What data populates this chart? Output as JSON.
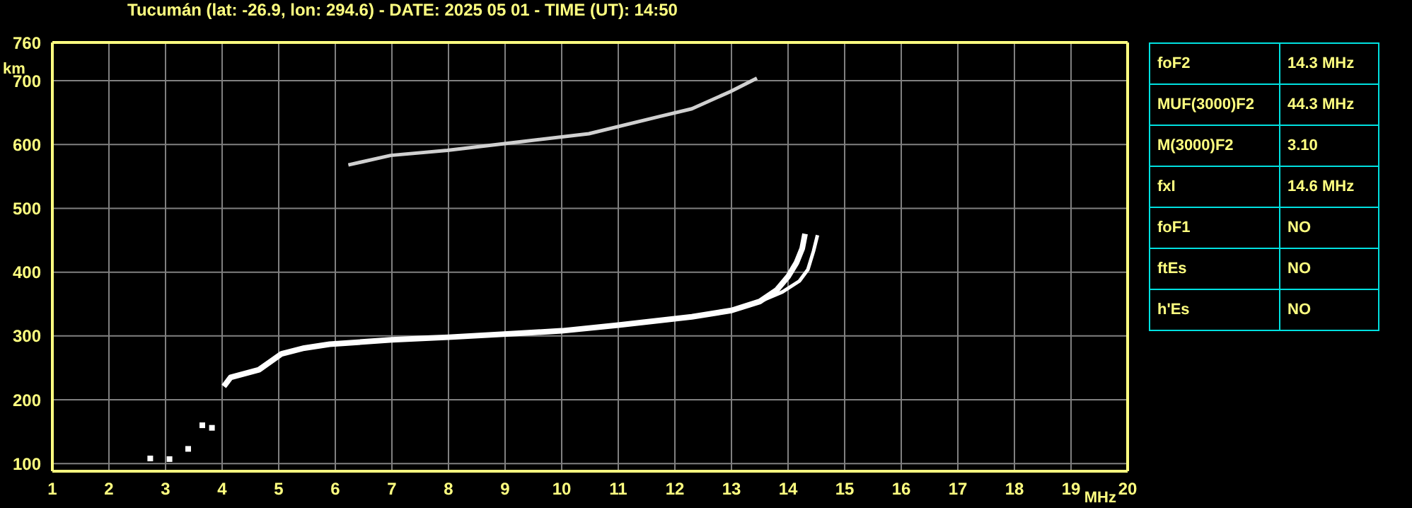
{
  "chart_data": {
    "type": "line",
    "title": "Tucumán (lat: -26.9, lon: 294.6) - DATE: 2025 05 01 - TIME (UT): 14:50",
    "xlabel": "MHz",
    "ylabel": "km",
    "xlim": [
      1,
      20
    ],
    "xticks": [
      1,
      2,
      3,
      4,
      5,
      6,
      7,
      8,
      9,
      10,
      11,
      12,
      13,
      14,
      15,
      16,
      17,
      18,
      19,
      20
    ],
    "ylim": [
      88,
      760
    ],
    "yticks": [
      100,
      200,
      300,
      400,
      500,
      600,
      700,
      760
    ],
    "grid": true,
    "marker": "none",
    "line_style": "solid",
    "series": [
      {
        "color": "#ffffff",
        "x": [
          4.03,
          4.15,
          4.65,
          5.05,
          5.45,
          5.9,
          7,
          8,
          9.2,
          10,
          11,
          12.3,
          13,
          13.5,
          13.8,
          14,
          14.15,
          14.25,
          14.3
        ],
        "values": [
          221,
          235,
          247,
          272,
          281,
          287,
          294,
          298,
          304,
          308,
          317,
          330,
          340,
          354,
          372,
          393,
          415,
          437,
          460
        ]
      },
      {
        "color": "#ffffff",
        "x": [
          13.5,
          13.9,
          14.2,
          14.35,
          14.45,
          14.52
        ],
        "values": [
          354,
          369,
          386,
          404,
          433,
          458
        ]
      },
      {
        "color": "#d0d0d0",
        "x": [
          6.23,
          6.98,
          7.98,
          9.23,
          10.48,
          11.73,
          12.3,
          12.98,
          13.45
        ],
        "values": [
          568,
          583,
          591,
          604,
          617,
          644,
          656,
          683,
          704
        ]
      },
      {
        "type": "scatter",
        "marker": "square",
        "color": "#ffffff",
        "x": [
          2.73,
          3.07,
          3.4,
          3.65,
          3.82
        ],
        "values": [
          108,
          107,
          123,
          160,
          156
        ]
      }
    ],
    "annotations": [
      "foF2",
      "14.3 MHz",
      "MUF(3000)F2",
      "44.3 MHz",
      "M(3000)F2",
      "3.10",
      "fxI",
      "14.6 MHz",
      "foF1",
      "NO",
      "ftEs",
      "NO",
      "h'Es",
      "NO"
    ]
  }
}
